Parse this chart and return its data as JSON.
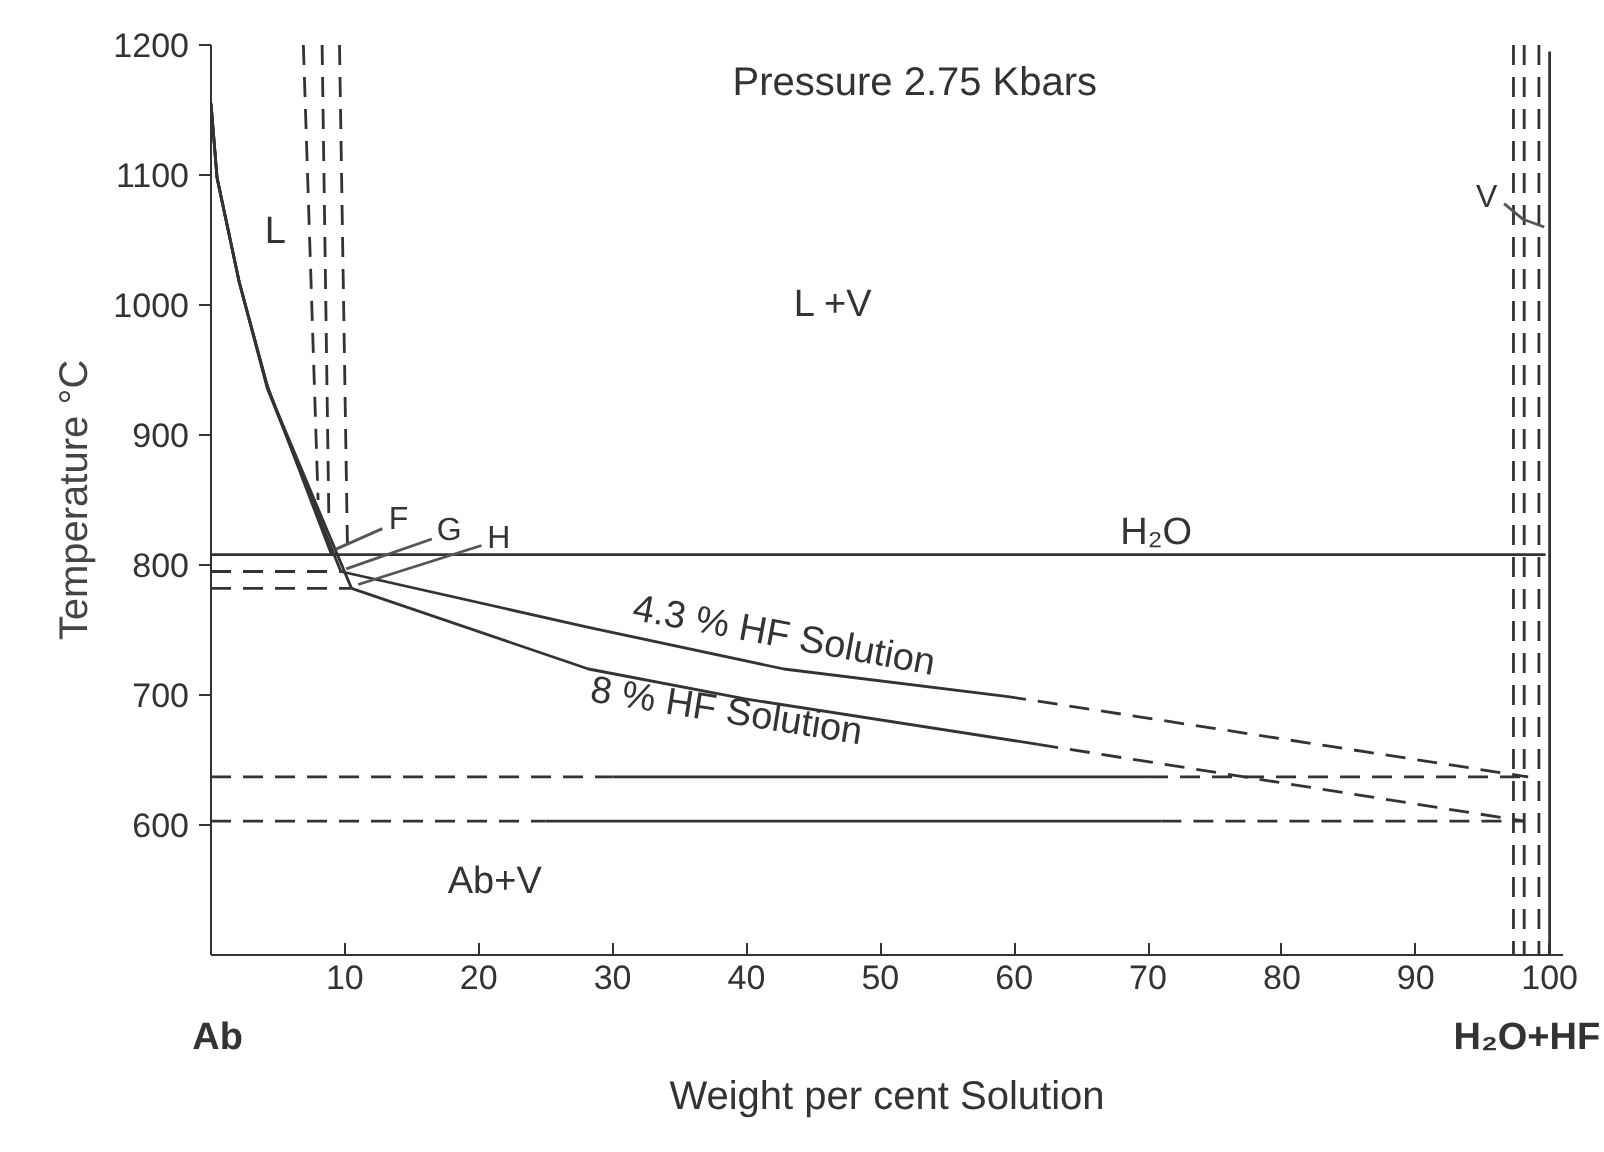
{
  "chart_data": {
    "type": "line",
    "title": "Pressure 2.75 Kbars",
    "xlabel": "Weight per cent Solution",
    "ylabel": "Temperature °C",
    "xlim": [
      0,
      101
    ],
    "ylim": [
      500,
      1200
    ],
    "xticks": [
      10,
      20,
      30,
      40,
      50,
      60,
      70,
      80,
      90,
      100
    ],
    "yticks": [
      600,
      700,
      800,
      900,
      1000,
      1100,
      1200
    ],
    "series": [
      {
        "color": "#333333",
        "line_style": "solid",
        "x": [
          0,
          0.45,
          2.1,
          4.2,
          9.0
        ],
        "values": [
          1155,
          1098,
          1018,
          938,
          808
        ]
      },
      {
        "color": "#333333",
        "line_style": "solid",
        "x": [
          0,
          0.45,
          2.1,
          4.2,
          9.7
        ],
        "values": [
          1155,
          1098,
          1018,
          936,
          795
        ]
      },
      {
        "color": "#333333",
        "line_style": "solid",
        "x": [
          0,
          0.45,
          2.1,
          4.3,
          10.5
        ],
        "values": [
          1155,
          1098,
          1018,
          934,
          782
        ]
      },
      {
        "color": "#333333",
        "line_style": "solid",
        "x": [
          0,
          99.7
        ],
        "values": [
          808,
          808
        ]
      },
      {
        "color": "#333333",
        "line_style": "dashed",
        "x": [
          0,
          9.7
        ],
        "values": [
          795,
          795
        ]
      },
      {
        "color": "#333333",
        "line_style": "dashed",
        "x": [
          0,
          10.5
        ],
        "values": [
          782,
          782
        ]
      },
      {
        "color": "#333333",
        "line_style": "solid",
        "x": [
          9.7,
          28.2,
          42.8,
          59.4
        ],
        "values": [
          795,
          752,
          720,
          699
        ]
      },
      {
        "color": "#333333",
        "line_style": "dashed",
        "x": [
          59.4,
          98.4
        ],
        "values": [
          699,
          637
        ]
      },
      {
        "color": "#333333",
        "line_style": "solid",
        "x": [
          10.5,
          28.2,
          39.9,
          61.8
        ],
        "values": [
          782,
          720,
          697,
          662
        ]
      },
      {
        "color": "#333333",
        "line_style": "dashed",
        "x": [
          61.8,
          98.1
        ],
        "values": [
          662,
          603
        ]
      },
      {
        "color": "#333333",
        "line_style": "dashed",
        "x": [
          0,
          30
        ],
        "values": [
          637,
          637
        ]
      },
      {
        "color": "#333333",
        "line_style": "solid",
        "x": [
          30,
          70
        ],
        "values": [
          637,
          637
        ]
      },
      {
        "color": "#333333",
        "line_style": "dashed",
        "x": [
          70,
          98.4
        ],
        "values": [
          637,
          637
        ]
      },
      {
        "color": "#333333",
        "line_style": "dashed",
        "x": [
          0,
          25
        ],
        "values": [
          603,
          603
        ]
      },
      {
        "color": "#333333",
        "line_style": "solid",
        "x": [
          25,
          71
        ],
        "values": [
          603,
          603
        ]
      },
      {
        "color": "#333333",
        "line_style": "dashed",
        "x": [
          71,
          98.1
        ],
        "values": [
          603,
          603
        ]
      },
      {
        "color": "#333333",
        "line_style": "dashed",
        "x": [
          6.9,
          8.0
        ],
        "values": [
          1200,
          850
        ]
      },
      {
        "color": "#333333",
        "line_style": "dashed",
        "x": [
          8.3,
          8.8
        ],
        "values": [
          1200,
          840
        ]
      },
      {
        "color": "#333333",
        "line_style": "dashed",
        "x": [
          9.6,
          10.2
        ],
        "values": [
          1200,
          810
        ]
      },
      {
        "color": "#333333",
        "line_style": "dashed",
        "x": [
          97.3,
          97.3
        ],
        "values": [
          1200,
          500
        ]
      },
      {
        "color": "#333333",
        "line_style": "dashed",
        "x": [
          98.1,
          98.1
        ],
        "values": [
          1200,
          500
        ]
      },
      {
        "color": "#333333",
        "line_style": "dashed",
        "x": [
          99.2,
          99.2
        ],
        "values": [
          1200,
          500
        ]
      },
      {
        "color": "#333333",
        "line_style": "solid",
        "x": [
          100,
          100
        ],
        "values": [
          1195,
          500
        ]
      },
      {
        "color": "#555555",
        "line_style": "solid",
        "x": [
          12.8,
          9.3
        ],
        "values": [
          828,
          812
        ]
      },
      {
        "color": "#555555",
        "line_style": "solid",
        "x": [
          16.5,
          10.1
        ],
        "values": [
          820,
          797
        ]
      },
      {
        "color": "#555555",
        "line_style": "solid",
        "x": [
          20.2,
          11.0
        ],
        "values": [
          815,
          785
        ]
      },
      {
        "color": "#555555",
        "line_style": "solid",
        "x": [
          96.6,
          98.0,
          99.6
        ],
        "values": [
          1078,
          1066,
          1060
        ]
      }
    ],
    "annotations": [
      "L",
      "L +V",
      "Ab+V",
      "H₂O",
      "4.3 % HF Solution",
      "8 % HF Solution",
      "F",
      "G",
      "H",
      "V",
      "Ab",
      "H₂O+HF"
    ]
  }
}
